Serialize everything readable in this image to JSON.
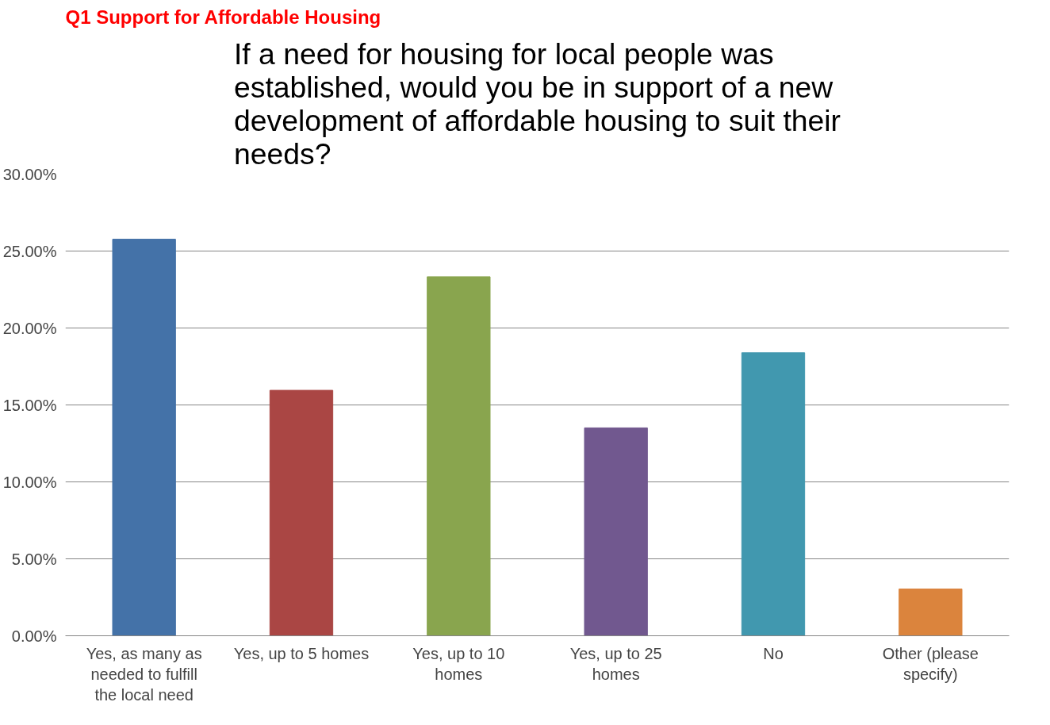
{
  "chart_data": {
    "type": "bar",
    "title": "If a need for housing for local people was established, would you be in support of a new development of affordable housing to suit their needs?",
    "annotations": [
      "Q1 Support for Affordable Housing"
    ],
    "categories": [
      "Yes, as many as needed to fulfill the local need",
      "Yes, up to 5 homes",
      "Yes, up to 10 homes",
      "Yes, up to 25 homes",
      "No",
      "Other (please specify)"
    ],
    "values": [
      25.77,
      15.95,
      23.33,
      13.51,
      18.39,
      3.04
    ],
    "colors": [
      "#4472a8",
      "#aa4644",
      "#89a54e",
      "#71588f",
      "#4198af",
      "#db843d"
    ],
    "ylim": [
      0,
      30
    ],
    "yticks": [
      {
        "value": 0,
        "label": "0.00%"
      },
      {
        "value": 5,
        "label": "5.00%"
      },
      {
        "value": 10,
        "label": "10.00%"
      },
      {
        "value": 15,
        "label": "15.00%"
      },
      {
        "value": 20,
        "label": "20.00%"
      },
      {
        "value": 25,
        "label": "25.00%"
      },
      {
        "value": 30,
        "label": "30.00%"
      }
    ],
    "grid": "y"
  }
}
